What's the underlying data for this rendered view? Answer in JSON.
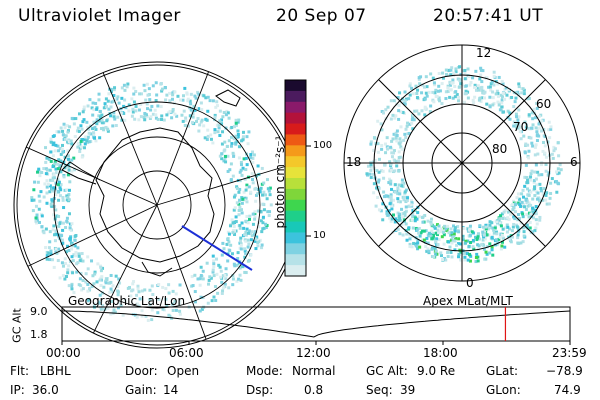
{
  "header": {
    "title": "Ultraviolet Imager",
    "date": "20 Sep 07",
    "time": "20:57:41 UT"
  },
  "colorbar": {
    "label": "photon cm⁻²s⁻¹",
    "ticks": [
      "100",
      "10"
    ],
    "colors": [
      "#1a0a2e",
      "#4b1b5e",
      "#8a1a6a",
      "#b3123a",
      "#d81b1b",
      "#ee5a14",
      "#f59a1a",
      "#f4c82a",
      "#e7e33a",
      "#b8e03a",
      "#7fd63a",
      "#3ed64e",
      "#1fcf8a",
      "#18c8b8",
      "#3cc3dd",
      "#7fd2e2",
      "#b6e2e8",
      "#dbeef0"
    ]
  },
  "left_map": {
    "label": "Geographic Lat/Lon"
  },
  "right_map": {
    "label": "Apex MLat/MLT",
    "mlt_labels": {
      "top": "12",
      "bottom": "0",
      "left": "18",
      "right": "6"
    },
    "lat_labels": [
      "60",
      "70",
      "80"
    ]
  },
  "altplot": {
    "ylabel": "GC Alt",
    "yticks": [
      "9.0",
      "1.8"
    ],
    "xticks": [
      "00:00",
      "06:00",
      "12:00",
      "18:00",
      "23:59"
    ],
    "marker_time": "20:57"
  },
  "info": {
    "flt_label": "Flt:",
    "flt_value": "LBHL",
    "ip_label": "IP:",
    "ip_value": "36.0",
    "door_label": "Door:",
    "door_value": "Open",
    "gain_label": "Gain:",
    "gain_value": "14",
    "mode_label": "Mode:",
    "mode_value": "Normal",
    "dsp_label": "Dsp:",
    "dsp_value": "0.8",
    "gcalt_label": "GC Alt:",
    "gcalt_value": "9.0 Re",
    "seq_label": "Seq:",
    "seq_value": "39",
    "glat_label": "GLat:",
    "glat_value": "−78.9",
    "glon_label": "GLon:",
    "glon_value": "74.9"
  }
}
